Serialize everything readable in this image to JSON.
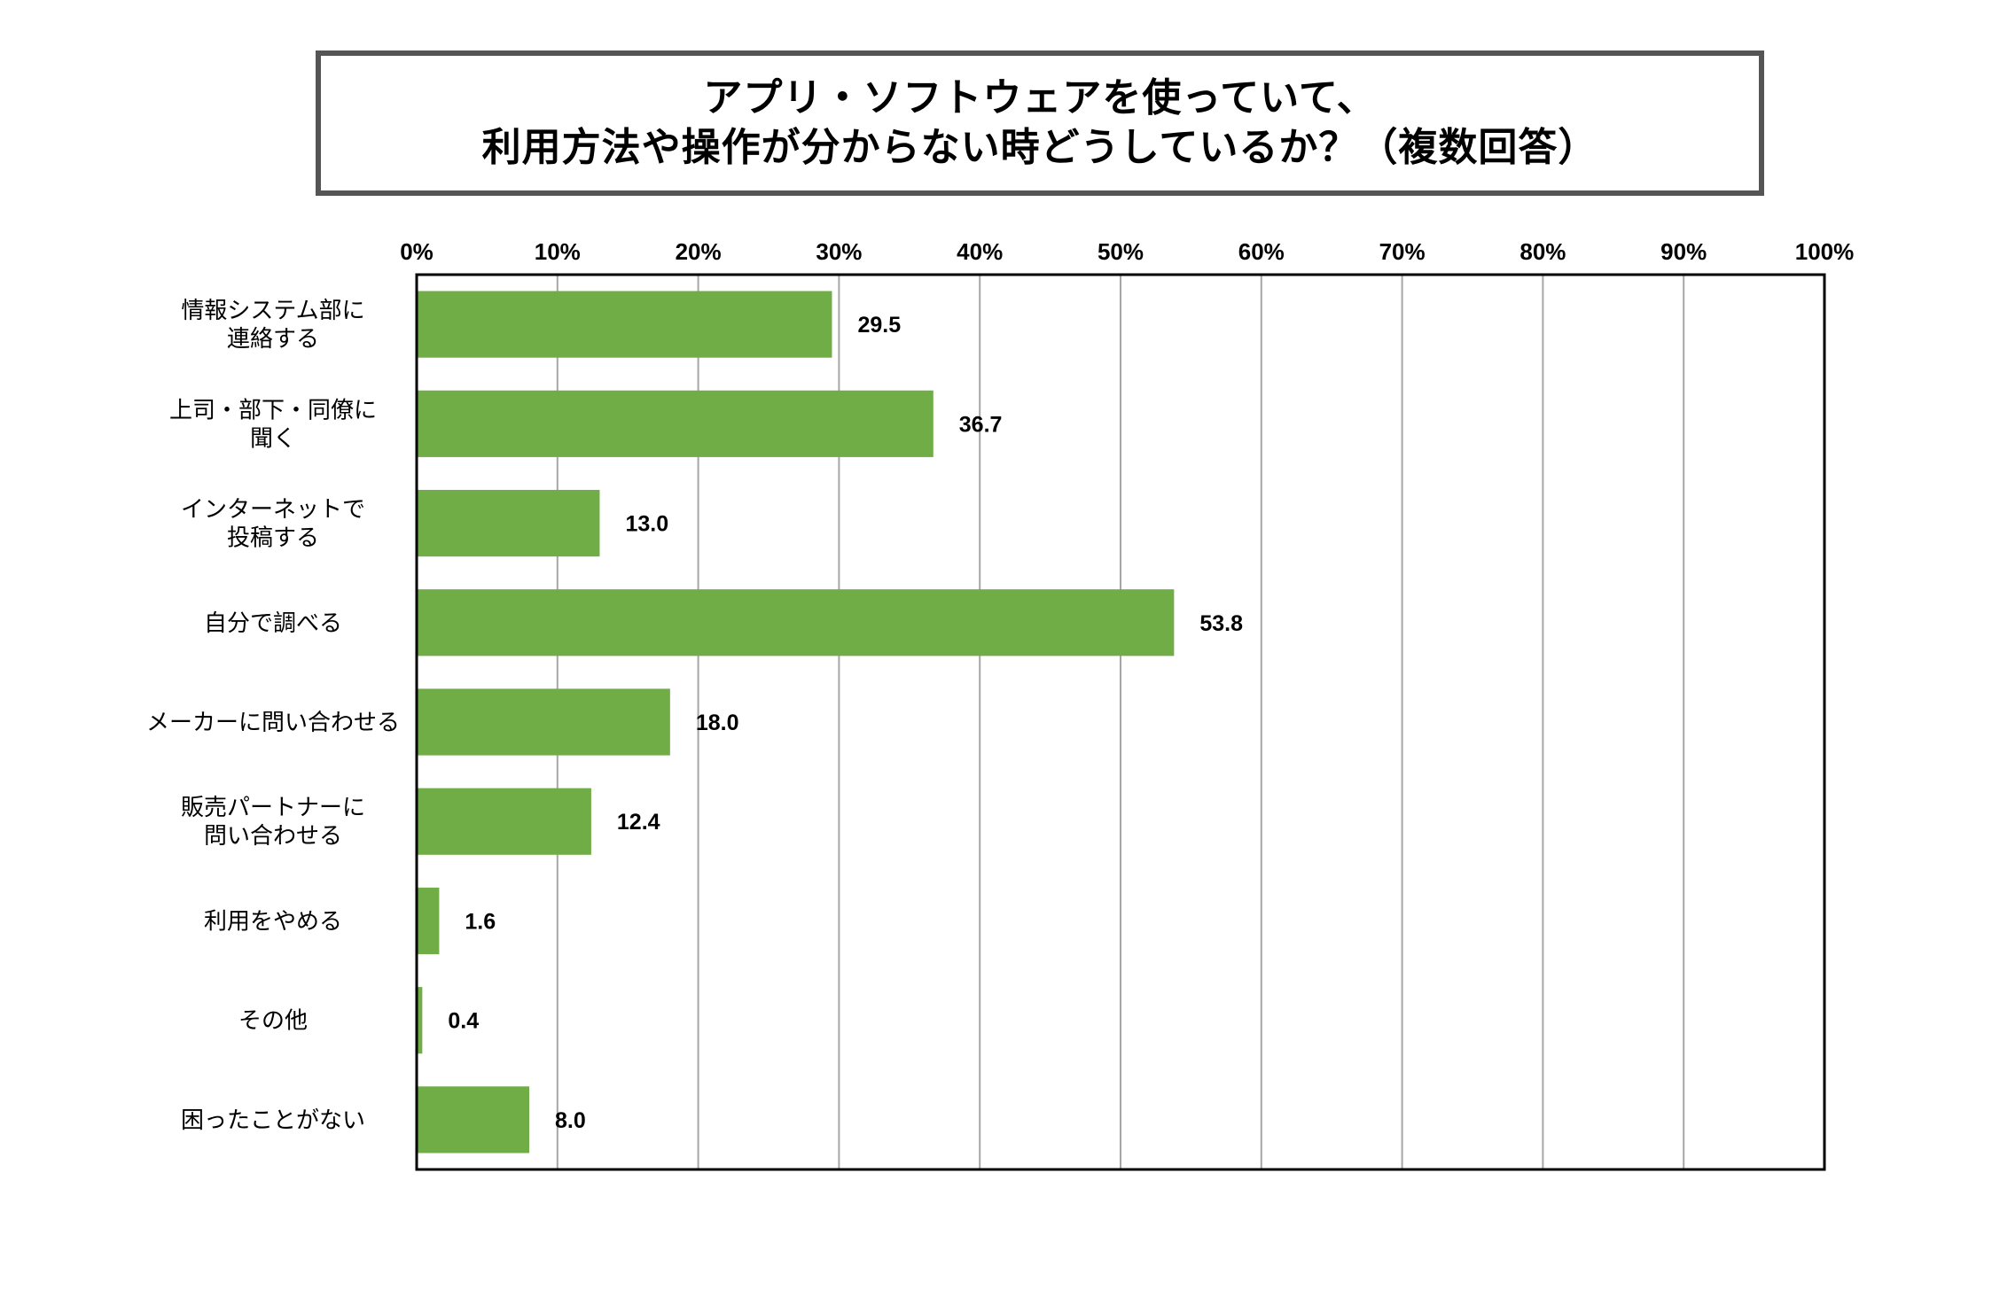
{
  "chart_data": {
    "type": "bar",
    "orientation": "horizontal",
    "title_lines": [
      "アプリ・ソフトウェアを使っていて、",
      "利用方法や操作が分からない時どうしているか？（複数回答）"
    ],
    "categories": [
      [
        "情報システム部に",
        "連絡する"
      ],
      [
        "上司・部下・同僚に",
        "聞く"
      ],
      [
        "インターネットで",
        "投稿する"
      ],
      [
        "自分で調べる"
      ],
      [
        "メーカーに問い合わせる"
      ],
      [
        "販売パートナーに",
        "問い合わせる"
      ],
      [
        "利用をやめる"
      ],
      [
        "その他"
      ],
      [
        "困ったことがない"
      ]
    ],
    "values": [
      29.5,
      36.7,
      13.0,
      53.8,
      18.0,
      12.4,
      1.6,
      0.4,
      8.0
    ],
    "value_labels": [
      "29.5",
      "36.7",
      "13.0",
      "53.8",
      "18.0",
      "12.4",
      "1.6",
      "0.4",
      "8.0"
    ],
    "x_ticks": [
      "0%",
      "10%",
      "20%",
      "30%",
      "40%",
      "50%",
      "60%",
      "70%",
      "80%",
      "90%",
      "100%"
    ],
    "xlim": [
      0,
      100
    ],
    "xlabel": "",
    "ylabel": "",
    "grid": true,
    "legend": "none",
    "colors": {
      "bar": "#70ad47",
      "grid": "#a6a6a6",
      "frame": "#000000",
      "title_border": "#555555"
    }
  }
}
